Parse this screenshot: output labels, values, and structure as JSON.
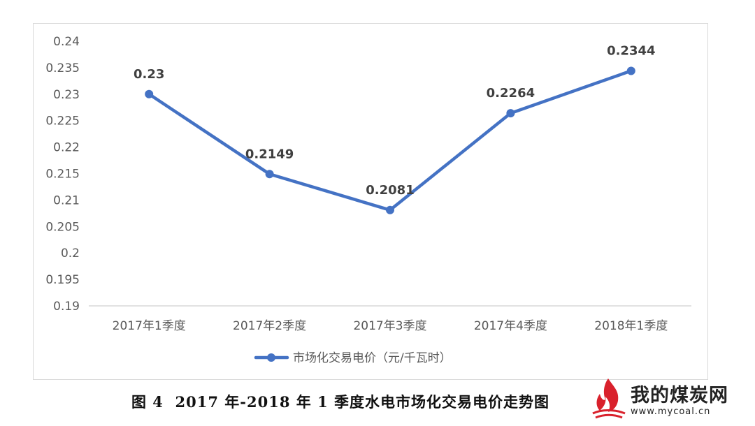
{
  "chart_data": {
    "type": "line",
    "categories": [
      "2017年1季度",
      "2017年2季度",
      "2017年3季度",
      "2017年4季度",
      "2018年1季度"
    ],
    "series": [
      {
        "name": "市场化交易电价（元/千瓦时）",
        "values": [
          0.23,
          0.2149,
          0.2081,
          0.2264,
          0.2344
        ],
        "data_labels": [
          "0.23",
          "0.2149",
          "0.2081",
          "0.2264",
          "0.2344"
        ],
        "color": "#4472c4"
      }
    ],
    "ylim": [
      0.19,
      0.24
    ],
    "yticks": [
      "0.19",
      "0.195",
      "0.2",
      "0.205",
      "0.21",
      "0.215",
      "0.22",
      "0.225",
      "0.23",
      "0.235",
      "0.24"
    ],
    "ytick_values": [
      0.19,
      0.195,
      0.2,
      0.205,
      0.21,
      0.215,
      0.22,
      0.225,
      0.23,
      0.235,
      0.24
    ],
    "grid": false,
    "legend_position": "bottom"
  },
  "caption": "图 4  2017 年-2018 年 1 季度水电市场化交易电价走势图",
  "watermark": {
    "name": "我的煤炭网",
    "url": "www.mycoal.cn"
  }
}
